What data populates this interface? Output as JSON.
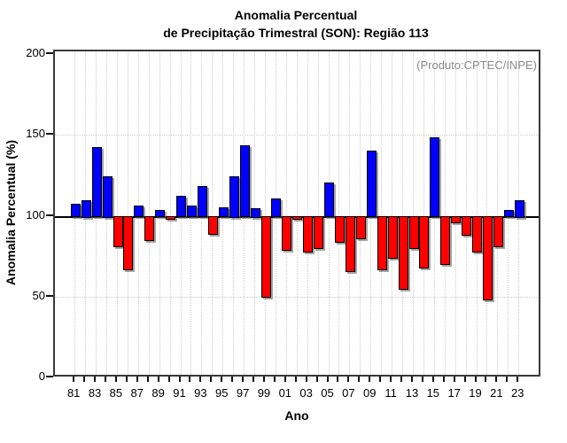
{
  "title": {
    "line1": "Anomalia Percentual",
    "line2": "de Precipitação Trimestral (SON): Região 113"
  },
  "annotation": "(Produto:CPTEC/INPE)",
  "chart_data": {
    "type": "bar",
    "title": "Anomalia Percentual de Precipitação Trimestral (SON): Região 113",
    "xlabel": "Ano",
    "ylabel": "Anomalia Percentual (%)",
    "ylim": [
      0,
      200
    ],
    "yticks": [
      0,
      50,
      100,
      150,
      200
    ],
    "baseline": 100,
    "grid": "dotted",
    "legend": "none",
    "colors": {
      "above_baseline": "#0000ff",
      "below_baseline": "#ff0000"
    },
    "xticklabels": [
      "81",
      "83",
      "85",
      "87",
      "89",
      "91",
      "93",
      "95",
      "97",
      "99",
      "01",
      "03",
      "05",
      "07",
      "09",
      "11",
      "13",
      "15",
      "17",
      "19",
      "21",
      "23"
    ],
    "years": [
      1981,
      1982,
      1983,
      1984,
      1985,
      1986,
      1987,
      1988,
      1989,
      1990,
      1991,
      1992,
      1993,
      1994,
      1995,
      1996,
      1997,
      1998,
      1999,
      2000,
      2001,
      2002,
      2003,
      2004,
      2005,
      2006,
      2007,
      2008,
      2009,
      2010,
      2011,
      2012,
      2013,
      2014,
      2015,
      2016,
      2017,
      2018,
      2019,
      2020,
      2021,
      2022,
      2023
    ],
    "values": [
      108,
      110,
      143,
      125,
      81,
      67,
      107,
      85,
      104,
      98,
      113,
      107,
      119,
      89,
      106,
      125,
      144,
      105,
      50,
      111,
      79,
      98,
      78,
      80,
      121,
      84,
      66,
      86,
      141,
      67,
      74,
      55,
      80,
      68,
      149,
      70,
      96,
      88,
      78,
      48,
      81,
      104,
      110
    ]
  }
}
